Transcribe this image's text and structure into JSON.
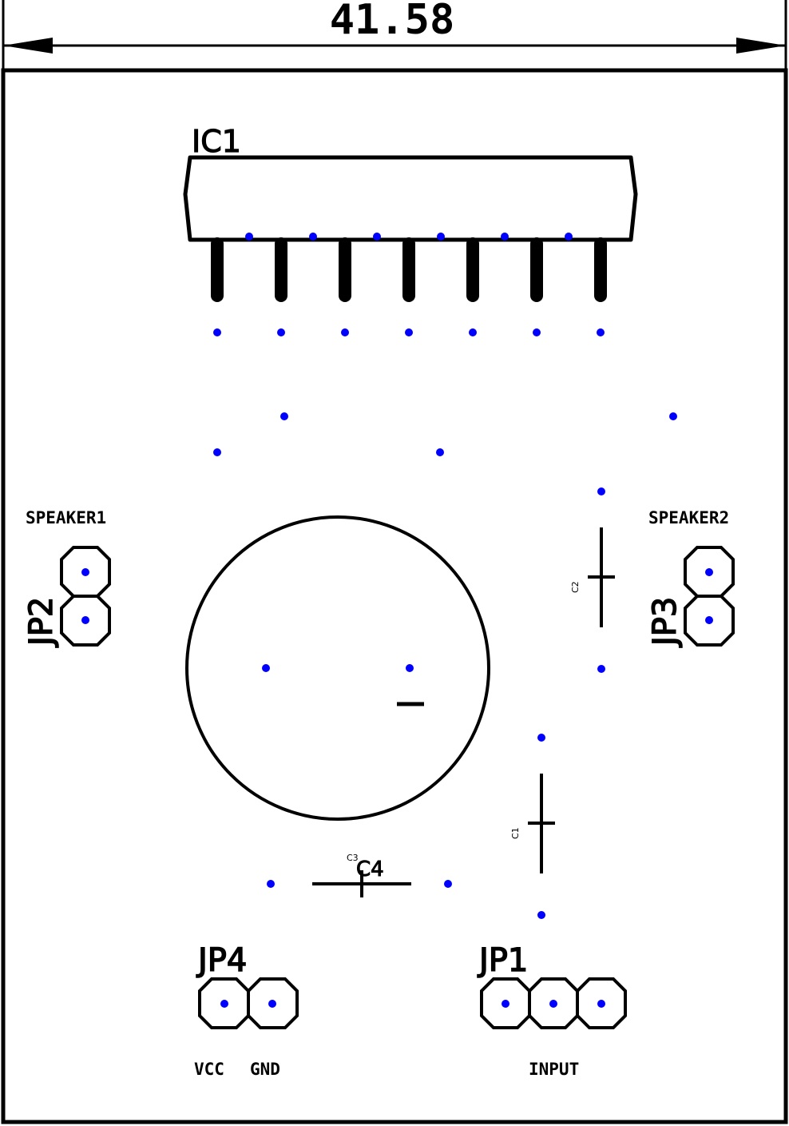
{
  "dimension": {
    "value": "41.58"
  },
  "labels": {
    "ic1": "IC1",
    "speaker1": "SPEAKER1",
    "speaker2": "SPEAKER2",
    "jp1": "JP1",
    "jp2": "JP2",
    "jp3": "JP3",
    "jp4": "JP4",
    "c1": "C1",
    "c2": "C2",
    "c3": "C3",
    "c4": "C4",
    "vcc": "VCC",
    "gnd": "GND",
    "input": "INPUT"
  },
  "colors": {
    "pad": "#0000ff",
    "outline": "#000000",
    "background": "#ffffff"
  }
}
